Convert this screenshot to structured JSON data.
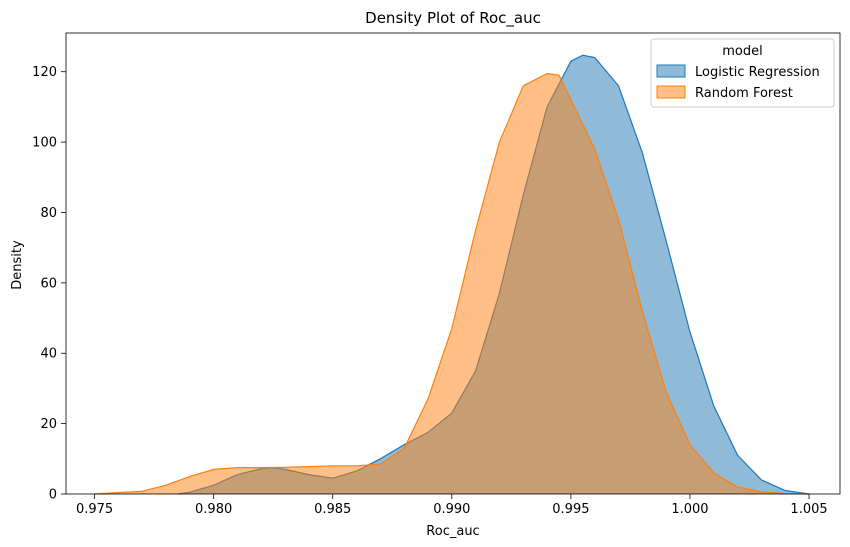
{
  "chart_data": {
    "type": "area",
    "title": "Density Plot of Roc_auc",
    "xlabel": "Roc_auc",
    "ylabel": "Density",
    "xlim": [
      0.9738,
      1.0063
    ],
    "ylim": [
      0,
      131
    ],
    "x_ticks": [
      0.975,
      0.98,
      0.985,
      0.99,
      0.995,
      1.0,
      1.005
    ],
    "x_tick_labels": [
      "0.975",
      "0.980",
      "0.985",
      "0.990",
      "0.995",
      "1.000",
      "1.005"
    ],
    "y_ticks": [
      0,
      20,
      40,
      60,
      80,
      100,
      120
    ],
    "y_tick_labels": [
      "0",
      "20",
      "40",
      "60",
      "80",
      "100",
      "120"
    ],
    "grid": false,
    "legend": {
      "title": "model",
      "placement": "top-right"
    },
    "series": [
      {
        "name": "Logistic Regression",
        "color": "#1f77b4",
        "x": [
          0.9785,
          0.979,
          0.98,
          0.981,
          0.982,
          0.9825,
          0.983,
          0.984,
          0.985,
          0.986,
          0.987,
          0.988,
          0.989,
          0.99,
          0.991,
          0.992,
          0.993,
          0.994,
          0.995,
          0.9955,
          0.996,
          0.997,
          0.998,
          0.999,
          1.0,
          1.001,
          1.002,
          1.003,
          1.004,
          1.005
        ],
        "y": [
          0,
          0.5,
          2.5,
          5.5,
          7.2,
          7.5,
          7.0,
          5.5,
          4.5,
          6.5,
          10.0,
          14.0,
          17.5,
          23.0,
          35.0,
          57.0,
          85.0,
          110.0,
          123.0,
          124.7,
          124.0,
          116.0,
          97.0,
          72.0,
          46.0,
          25.0,
          11.0,
          4.0,
          1.0,
          0
        ]
      },
      {
        "name": "Random Forest",
        "color": "#ff7f0e",
        "x": [
          0.975,
          0.977,
          0.978,
          0.979,
          0.98,
          0.981,
          0.982,
          0.983,
          0.984,
          0.985,
          0.986,
          0.987,
          0.988,
          0.989,
          0.99,
          0.991,
          0.992,
          0.993,
          0.994,
          0.9945,
          0.995,
          0.996,
          0.997,
          0.998,
          0.999,
          1.0,
          1.001,
          1.002,
          1.003,
          1.004,
          1.005
        ],
        "y": [
          0,
          0.8,
          2.5,
          5.0,
          7.0,
          7.5,
          7.5,
          7.6,
          7.8,
          8.0,
          8.0,
          8.5,
          13.0,
          27.0,
          47.0,
          75.0,
          100.0,
          116.0,
          119.5,
          119.0,
          112.0,
          98.0,
          78.0,
          52.0,
          29.0,
          14.0,
          6.0,
          2.0,
          0.6,
          0.1,
          0
        ]
      }
    ]
  }
}
